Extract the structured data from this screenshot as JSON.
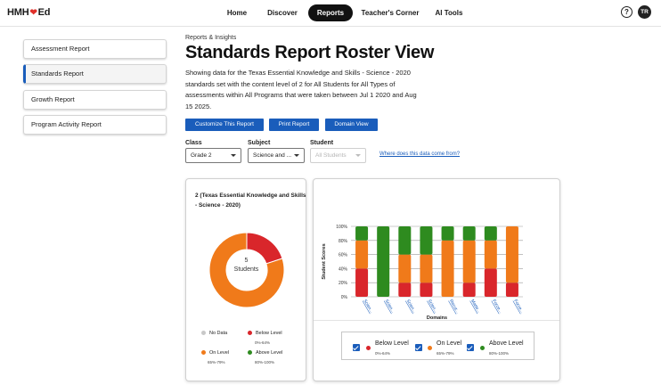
{
  "app": {
    "logo_text_left": "HMH",
    "logo_text_right": "Ed"
  },
  "nav": {
    "items": [
      {
        "label": "Home",
        "active": false
      },
      {
        "label": "Discover",
        "active": false
      },
      {
        "label": "Reports",
        "active": true
      },
      {
        "label": "Teacher's Corner",
        "active": false
      },
      {
        "label": "AI Tools",
        "active": false
      }
    ],
    "help_glyph": "?",
    "avatar_initials": "TR"
  },
  "sidebar": {
    "items": [
      {
        "label": "Assessment Report",
        "active": false
      },
      {
        "label": "Standards Report",
        "active": true
      },
      {
        "label": "Growth Report",
        "active": false
      },
      {
        "label": "Program Activity Report",
        "active": false
      }
    ]
  },
  "header": {
    "breadcrumb": "Reports & Insights",
    "title": "Standards Report Roster View",
    "description": "Showing data for the Texas Essential Knowledge and Skills - Science - 2020 standards set with the content level of 2 for All Students for All Types of assessments within All Programs that were taken between Jul 1 2020 and Aug 15 2025."
  },
  "actions": {
    "customize": "Customize This Report",
    "print": "Print Report",
    "domain_view": "Domain View"
  },
  "filters": {
    "class_label": "Class",
    "class_value": "Grade 2",
    "subject_label": "Subject",
    "subject_value": "Science and ...",
    "student_label": "Student",
    "student_placeholder": "All Students",
    "data_link": "Where does this data come from?"
  },
  "donut": {
    "title": "2 (Texas Essential Knowledge and Skills - Science - 2020)",
    "center_count": "5",
    "center_label": "Students",
    "legend": {
      "no_data": {
        "label": "No Data",
        "range": ""
      },
      "below": {
        "label": "Below Level",
        "range": "0%-64%"
      },
      "on": {
        "label": "On Level",
        "range": "65%-79%"
      },
      "above": {
        "label": "Above Level",
        "range": "80%-100%"
      }
    }
  },
  "colors": {
    "below": "#d9262b",
    "on": "#f07a1a",
    "above": "#2e8b1f",
    "no_data": "#c8c8c8",
    "accent": "#1a5dbb"
  },
  "chart_data": [
    {
      "type": "pie",
      "title": "2 (Texas Essential Knowledge and Skills - Science - 2020)",
      "slices": [
        {
          "name": "Below Level",
          "value": 1
        },
        {
          "name": "On Level",
          "value": 4
        }
      ]
    },
    {
      "type": "bar",
      "stacked": true,
      "xlabel": "Domains",
      "ylabel": "Student Scores",
      "ylim": [
        0,
        100
      ],
      "yticks": [
        "0%",
        "20%",
        "40%",
        "60%",
        "80%",
        "100%"
      ],
      "categories": [
        "Scien...",
        "Scien...",
        "Scien...",
        "Scien...",
        "Recur...",
        "Matte...",
        "Force...",
        "Force..."
      ],
      "series": [
        {
          "name": "Below Level",
          "values": [
            40,
            0,
            20,
            20,
            0,
            20,
            40,
            20
          ]
        },
        {
          "name": "On Level",
          "values": [
            40,
            0,
            40,
            40,
            80,
            60,
            40,
            80
          ]
        },
        {
          "name": "Above Level",
          "values": [
            20,
            100,
            40,
            40,
            20,
            20,
            20,
            0
          ]
        }
      ],
      "legend": [
        {
          "name": "Below Level",
          "range": "0%-64%"
        },
        {
          "name": "On Level",
          "range": "65%-79%"
        },
        {
          "name": "Above Level",
          "range": "80%-100%"
        }
      ],
      "grid": true
    }
  ]
}
